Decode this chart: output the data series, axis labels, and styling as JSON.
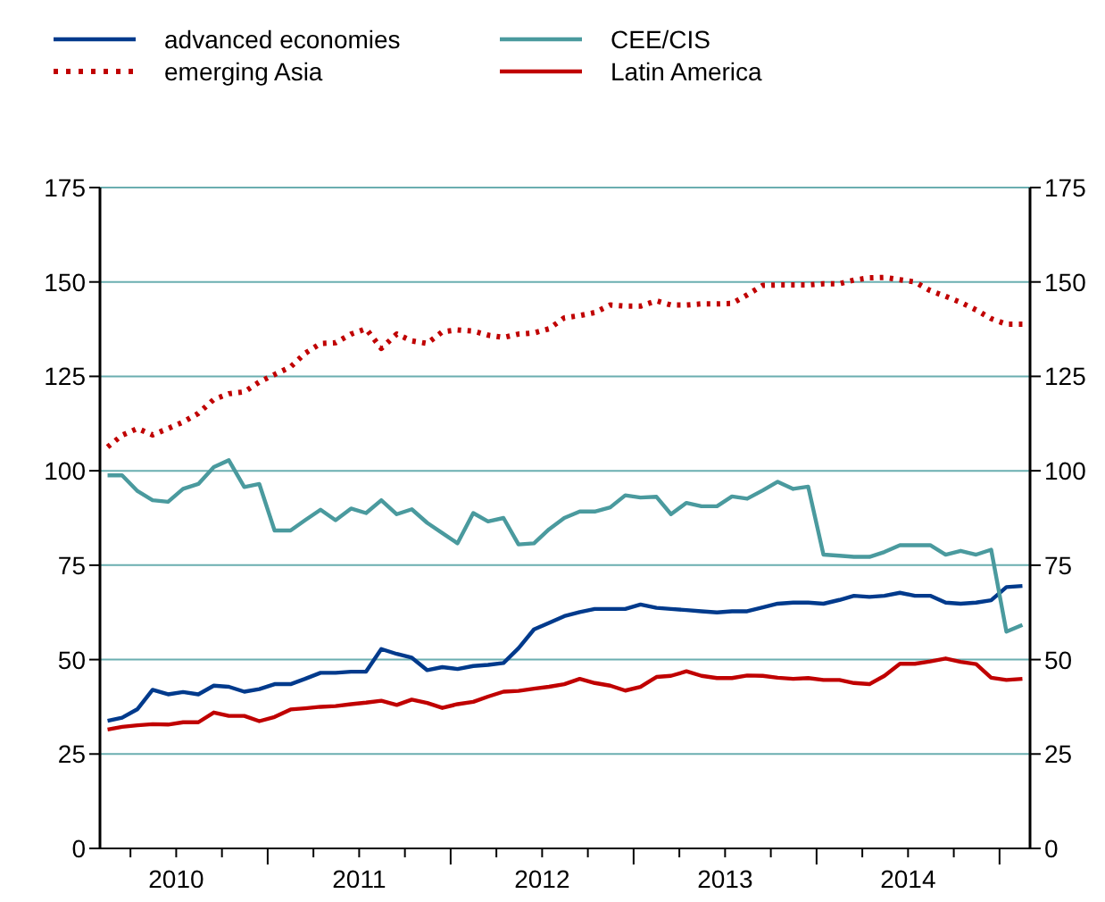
{
  "chart_data": {
    "type": "line",
    "x": [
      "2010-02-15",
      "2010-03-15",
      "2010-04-15",
      "2010-05-15",
      "2010-06-15",
      "2010-07-15",
      "2010-08-15",
      "2010-09-15",
      "2010-10-15",
      "2010-11-15",
      "2010-12-15",
      "2011-01-15",
      "2011-02-15",
      "2011-03-15",
      "2011-04-15",
      "2011-05-15",
      "2011-06-15",
      "2011-07-15",
      "2011-08-15",
      "2011-09-15",
      "2011-10-15",
      "2011-11-15",
      "2011-12-15",
      "2012-01-15",
      "2012-02-15",
      "2012-03-15",
      "2012-04-15",
      "2012-05-15",
      "2012-06-15",
      "2012-07-15",
      "2012-08-15",
      "2012-09-15",
      "2012-10-15",
      "2012-11-15",
      "2012-12-15",
      "2013-01-15",
      "2013-02-15",
      "2013-03-15",
      "2013-04-15",
      "2013-05-15",
      "2013-06-15",
      "2013-07-15",
      "2013-08-15",
      "2013-09-15",
      "2013-10-15",
      "2013-11-15",
      "2013-12-15",
      "2014-01-15",
      "2014-02-15",
      "2014-03-15",
      "2014-04-15",
      "2014-05-15",
      "2014-06-15",
      "2014-07-15",
      "2014-08-15",
      "2014-09-15",
      "2014-10-15",
      "2014-11-15",
      "2014-12-15",
      "2015-01-15",
      "2015-02-15"
    ],
    "series": [
      {
        "name": "advanced economies",
        "color": "#003a8c",
        "line_style": "solid",
        "values": [
          33.8,
          34.6,
          36.9,
          42,
          40.8,
          41.4,
          40.8,
          43.1,
          42.8,
          41.5,
          42.2,
          43.5,
          43.5,
          44.9,
          46.5,
          46.5,
          46.8,
          46.8,
          52.8,
          51.5,
          50.5,
          47.2,
          48,
          47.5,
          48.3,
          48.6,
          49.1,
          53,
          58,
          59.7,
          61.5,
          62.6,
          63.4,
          63.4,
          63.4,
          64.6,
          63.7,
          63.4,
          63.1,
          62.8,
          62.5,
          62.8,
          62.8,
          63.8,
          64.8,
          65.1,
          65.1,
          64.8,
          65.8,
          66.9,
          66.6,
          66.9,
          67.7,
          66.9,
          66.9,
          65.1,
          64.8,
          65.1,
          65.7,
          69.2,
          69.5
        ]
      },
      {
        "name": "CEE/CIS",
        "color": "#4a9a9e",
        "line_style": "solid",
        "values": [
          98.8,
          98.8,
          94.6,
          92.2,
          91.8,
          95.2,
          96.5,
          101,
          102.8,
          95.7,
          96.5,
          84.2,
          84.2,
          86.9,
          89.7,
          86.9,
          90,
          88.8,
          92.2,
          88.5,
          89.8,
          86.2,
          83.5,
          80.8,
          88.8,
          86.6,
          87.5,
          80.5,
          80.8,
          84.5,
          87.5,
          89.2,
          89.2,
          90.3,
          93.5,
          92.9,
          93.1,
          88.5,
          91.5,
          90.6,
          90.6,
          93.2,
          92.6,
          94.8,
          97.1,
          95.2,
          95.8,
          77.8,
          77.5,
          77.2,
          77.2,
          78.5,
          80.3,
          80.3,
          80.3,
          77.8,
          78.8,
          77.8,
          79.1,
          57.4,
          59.2
        ]
      },
      {
        "name": "emerging Asia",
        "color": "#c00000",
        "line_style": "dotted",
        "values": [
          106.3,
          109.4,
          111.2,
          109.5,
          111.2,
          112.9,
          115.2,
          118.9,
          120.4,
          120.9,
          123.5,
          125.5,
          127.5,
          131.1,
          133.7,
          133.9,
          136.2,
          137.6,
          132.4,
          136.2,
          134.4,
          133.7,
          136.8,
          137.3,
          137,
          135.9,
          135.3,
          136.2,
          136.5,
          137.6,
          140.5,
          141.1,
          141.9,
          143.9,
          143.6,
          143.6,
          145,
          143.9,
          143.9,
          144.2,
          144.2,
          144.3,
          146.6,
          149.1,
          149.2,
          149.2,
          149.2,
          149.5,
          149.5,
          150.5,
          151.1,
          151.2,
          150.6,
          150,
          147.7,
          146.2,
          144.6,
          142.6,
          140.3,
          138.8,
          138.8
        ]
      },
      {
        "name": "Latin America",
        "color": "#c00000",
        "line_style": "solid",
        "values": [
          31.5,
          32.2,
          32.6,
          32.9,
          32.8,
          33.4,
          33.4,
          36,
          35.1,
          35.1,
          33.7,
          34.8,
          36.8,
          37.1,
          37.5,
          37.7,
          38.2,
          38.6,
          39.1,
          38,
          39.4,
          38.5,
          37.2,
          38.2,
          38.8,
          40.2,
          41.5,
          41.7,
          42.3,
          42.8,
          43.5,
          44.9,
          43.8,
          43.1,
          41.8,
          42.8,
          45.4,
          45.7,
          46.9,
          45.7,
          45.1,
          45.1,
          45.8,
          45.7,
          45.2,
          44.9,
          45.1,
          44.6,
          44.6,
          43.8,
          43.5,
          45.7,
          48.9,
          48.9,
          49.5,
          50.3,
          49.4,
          48.8,
          45.2,
          44.6,
          44.9
        ]
      }
    ],
    "xlim": [
      "2010-02-01",
      "2015-03-01"
    ],
    "xticks": [
      {
        "value": "2010-04-01",
        "label": null
      },
      {
        "value": "2010-07-01",
        "label": "2010"
      },
      {
        "value": "2010-10-01",
        "label": null
      },
      {
        "value": "2011-01-01",
        "label": null
      },
      {
        "value": "2011-04-01",
        "label": null
      },
      {
        "value": "2011-07-01",
        "label": "2011"
      },
      {
        "value": "2011-10-01",
        "label": null
      },
      {
        "value": "2012-01-01",
        "label": null
      },
      {
        "value": "2012-04-01",
        "label": null
      },
      {
        "value": "2012-07-01",
        "label": "2012"
      },
      {
        "value": "2012-10-01",
        "label": null
      },
      {
        "value": "2013-01-01",
        "label": null
      },
      {
        "value": "2013-04-01",
        "label": null
      },
      {
        "value": "2013-07-01",
        "label": "2013"
      },
      {
        "value": "2013-10-01",
        "label": null
      },
      {
        "value": "2014-01-01",
        "label": null
      },
      {
        "value": "2014-04-01",
        "label": null
      },
      {
        "value": "2014-07-01",
        "label": "2014"
      },
      {
        "value": "2014-10-01",
        "label": null
      },
      {
        "value": "2015-01-01",
        "label": null
      }
    ],
    "ylim": [
      0,
      175
    ],
    "yticks": [
      0,
      25,
      50,
      75,
      100,
      125,
      150,
      175
    ],
    "y2lim": [
      0,
      175
    ],
    "y2ticks": [
      0,
      25,
      50,
      75,
      100,
      125,
      150,
      175
    ],
    "grid": "y",
    "legend": "top",
    "marker": "none"
  }
}
